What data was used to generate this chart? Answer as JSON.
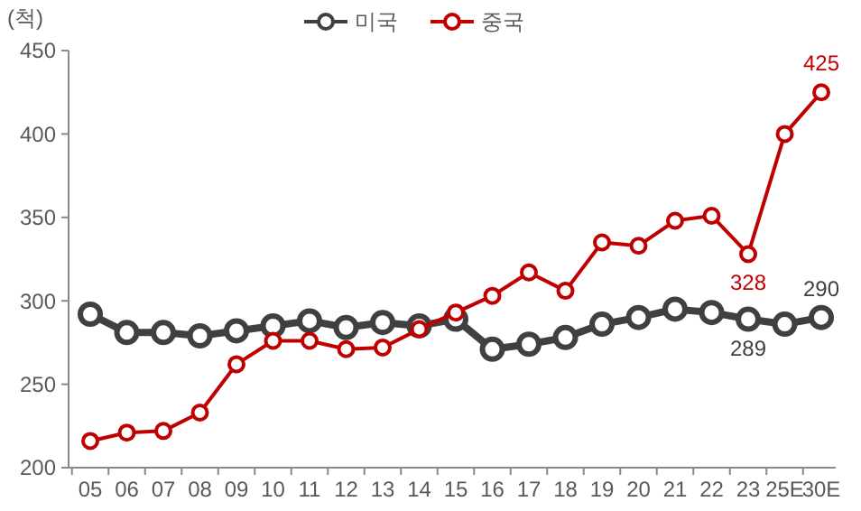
{
  "chart_data": {
    "type": "line",
    "ylabel": "(척)",
    "categories": [
      "05",
      "06",
      "07",
      "08",
      "09",
      "10",
      "11",
      "12",
      "13",
      "14",
      "15",
      "16",
      "17",
      "18",
      "19",
      "20",
      "21",
      "22",
      "23",
      "25E",
      "30E"
    ],
    "series": [
      {
        "name": "미국",
        "color": "#404040",
        "values": [
          292,
          281,
          281,
          279,
          282,
          285,
          288,
          284,
          287,
          285,
          289,
          271,
          274,
          278,
          286,
          290,
          295,
          293,
          289,
          286,
          290
        ],
        "value_labels": [
          null,
          null,
          null,
          null,
          null,
          null,
          null,
          null,
          null,
          null,
          null,
          null,
          null,
          null,
          null,
          null,
          null,
          null,
          "289",
          null,
          "290"
        ]
      },
      {
        "name": "중국",
        "color": "#c00000",
        "values": [
          216,
          221,
          222,
          233,
          262,
          276,
          276,
          271,
          272,
          283,
          293,
          303,
          317,
          306,
          335,
          333,
          348,
          351,
          328,
          400,
          425
        ],
        "value_labels": [
          null,
          null,
          null,
          null,
          null,
          null,
          null,
          null,
          null,
          null,
          null,
          null,
          null,
          null,
          null,
          null,
          null,
          null,
          "328",
          null,
          "425"
        ]
      }
    ],
    "ylim": [
      200,
      450
    ],
    "yticks": [
      200,
      250,
      300,
      350,
      400,
      450
    ],
    "grid": false,
    "legend": "top",
    "marker": "circle",
    "line_style": "solid"
  }
}
